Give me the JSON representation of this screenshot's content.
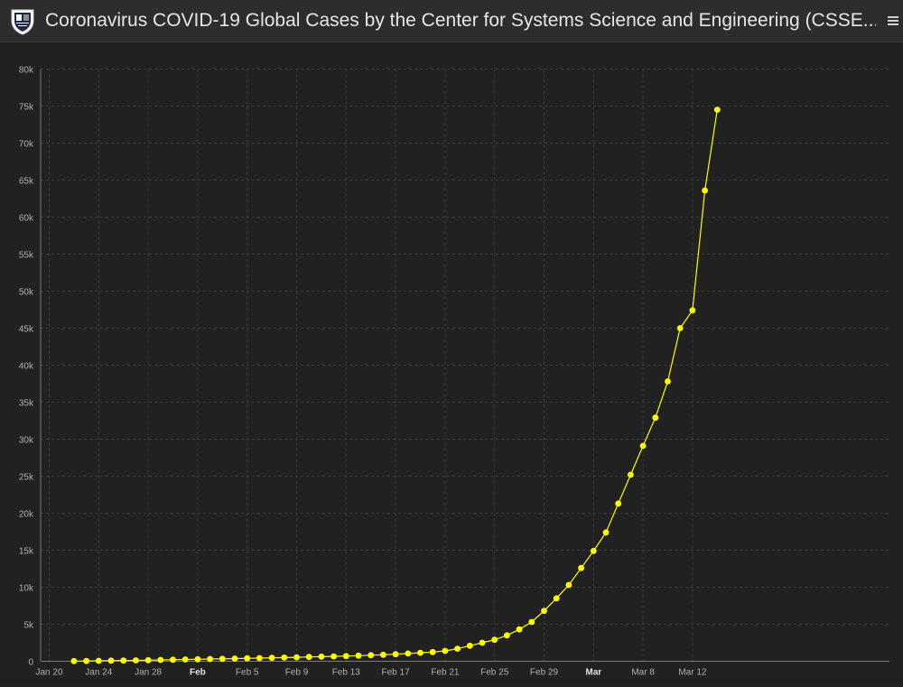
{
  "header": {
    "title": "Coronavirus COVID-19 Global Cases by the Center for Systems Science and Engineering (CSSE...",
    "logo_icon": "shield-crest-icon",
    "menu_icon": "hamburger-menu-icon"
  },
  "colors": {
    "background": "#222222",
    "header_background": "#2d2d2d",
    "series": "#ffff00",
    "grid": "#3a3a3a",
    "axis_text": "#b0b0b0"
  },
  "chart_data": {
    "type": "line",
    "title": "",
    "xlabel": "",
    "ylabel": "",
    "ylim": [
      0,
      80000
    ],
    "grid": true,
    "x_tick_labels": [
      "Jan 20",
      "Jan 24",
      "Jan 28",
      "Feb",
      "Feb 5",
      "Feb 9",
      "Feb 13",
      "Feb 17",
      "Feb 21",
      "Feb 25",
      "Feb 29",
      "Mar",
      "Mar 8",
      "Mar 12"
    ],
    "y_tick_labels": [
      "0",
      "5k",
      "10k",
      "15k",
      "20k",
      "25k",
      "30k",
      "35k",
      "40k",
      "45k",
      "50k",
      "55k",
      "60k",
      "65k",
      "70k",
      "75k",
      "80k"
    ],
    "x": [
      "2020-01-22",
      "2020-01-23",
      "2020-01-24",
      "2020-01-25",
      "2020-01-26",
      "2020-01-27",
      "2020-01-28",
      "2020-01-29",
      "2020-01-30",
      "2020-01-31",
      "2020-02-01",
      "2020-02-02",
      "2020-02-03",
      "2020-02-04",
      "2020-02-05",
      "2020-02-06",
      "2020-02-07",
      "2020-02-08",
      "2020-02-09",
      "2020-02-10",
      "2020-02-11",
      "2020-02-12",
      "2020-02-13",
      "2020-02-14",
      "2020-02-15",
      "2020-02-16",
      "2020-02-17",
      "2020-02-18",
      "2020-02-19",
      "2020-02-20",
      "2020-02-21",
      "2020-02-22",
      "2020-02-23",
      "2020-02-24",
      "2020-02-25",
      "2020-02-26",
      "2020-02-27",
      "2020-02-28",
      "2020-02-29",
      "2020-03-01",
      "2020-03-02",
      "2020-03-03",
      "2020-03-04",
      "2020-03-05",
      "2020-03-06",
      "2020-03-07",
      "2020-03-08",
      "2020-03-09",
      "2020-03-10",
      "2020-03-11",
      "2020-03-12",
      "2020-03-13",
      "2020-03-14"
    ],
    "series": [
      {
        "values": [
          30,
          40,
          60,
          80,
          100,
          120,
          150,
          180,
          210,
          240,
          270,
          300,
          330,
          360,
          400,
          430,
          460,
          500,
          540,
          580,
          620,
          660,
          700,
          760,
          820,
          880,
          950,
          1050,
          1150,
          1250,
          1400,
          1700,
          2100,
          2500,
          2900,
          3500,
          4300,
          5300,
          6800,
          8500,
          10300,
          12600,
          14900,
          17400,
          21300,
          25200,
          29100,
          32900,
          37800,
          45000,
          47400,
          63600,
          74500
        ]
      }
    ]
  }
}
